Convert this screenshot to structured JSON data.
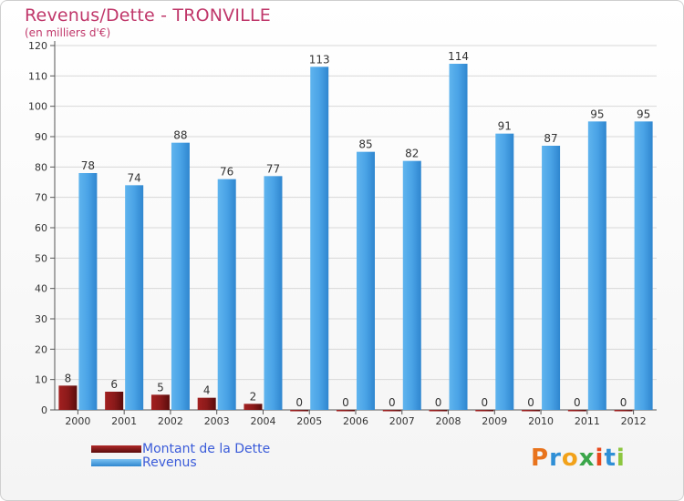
{
  "chart_data": {
    "type": "bar",
    "title": "Revenus/Dette - TRONVILLE",
    "subtitle": "(en milliers d'€)",
    "categories": [
      "2000",
      "2001",
      "2002",
      "2003",
      "2004",
      "2005",
      "2006",
      "2007",
      "2008",
      "2009",
      "2010",
      "2011",
      "2012"
    ],
    "series": [
      {
        "name": "Montant de la Dette",
        "color": "#8b1a1a",
        "values": [
          8,
          6,
          5,
          4,
          2,
          0,
          0,
          0,
          0,
          0,
          0,
          0,
          0
        ]
      },
      {
        "name": "Revenus",
        "color": "#4aa3e6",
        "values": [
          78,
          74,
          88,
          76,
          77,
          113,
          85,
          82,
          114,
          91,
          87,
          95,
          95
        ]
      }
    ],
    "ylim": [
      0,
      120
    ],
    "yticks": [
      0,
      10,
      20,
      30,
      40,
      50,
      60,
      70,
      80,
      90,
      100,
      110,
      120
    ],
    "grid": true,
    "legend_position": "bottom-left"
  },
  "legend": {
    "dette_label": "Montant de la Dette",
    "revenus_label": "Revenus"
  },
  "logo": {
    "letters": [
      "P",
      "r",
      "o",
      "x",
      "i",
      "t",
      "i"
    ],
    "colors": [
      "#e8731c",
      "#2f8fd6",
      "#f2a21a",
      "#3aa64a",
      "#e8481c",
      "#2f8fd6",
      "#8cc63f"
    ]
  }
}
